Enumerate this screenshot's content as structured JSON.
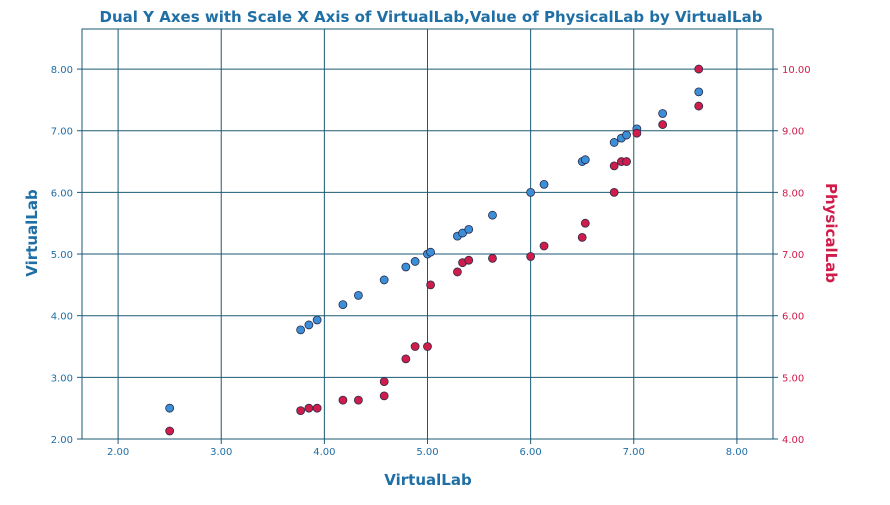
{
  "colors": {
    "left_series": "#3b8ed8",
    "right_series": "#d01c4b",
    "left_axis": "#1f6fa5",
    "right_axis": "#d01c4b",
    "grid": "#1b5a74",
    "title": "#1f6fa5"
  },
  "chart_data": {
    "type": "scatter",
    "title": "Dual Y Axes with Scale X Axis of VirtualLab,Value of PhysicalLab  by VirtualLab",
    "xlabel": "VirtualLab",
    "ylabel_left": "VirtualLab",
    "ylabel_right": "PhysicalLab",
    "xlim": [
      1.65,
      8.35
    ],
    "ylim_left": [
      2.0,
      8.65
    ],
    "ylim_right": [
      4.0,
      10.65
    ],
    "x_ticks": [
      "2.00",
      "3.00",
      "4.00",
      "5.00",
      "6.00",
      "7.00",
      "8.00"
    ],
    "y_ticks_left": [
      "2.00",
      "3.00",
      "4.00",
      "5.00",
      "6.00",
      "7.00",
      "8.00"
    ],
    "y_ticks_right": [
      "4.00",
      "5.00",
      "6.00",
      "7.00",
      "8.00",
      "9.00",
      "10.00"
    ],
    "grid": true,
    "series": [
      {
        "name": "VirtualLab",
        "axis": "left",
        "x": [
          2.5,
          3.77,
          3.85,
          3.93,
          4.18,
          4.33,
          4.58,
          4.79,
          4.88,
          5.0,
          5.03,
          5.29,
          5.34,
          5.4,
          5.63,
          6.0,
          6.13,
          6.5,
          6.53,
          6.81,
          6.88,
          6.93,
          7.03,
          7.28,
          7.63
        ],
        "y": [
          2.5,
          3.77,
          3.85,
          3.93,
          4.18,
          4.33,
          4.58,
          4.79,
          4.88,
          5.0,
          5.03,
          5.29,
          5.34,
          5.4,
          5.63,
          6.0,
          6.13,
          6.5,
          6.53,
          6.81,
          6.88,
          6.93,
          7.03,
          7.28,
          7.63
        ]
      },
      {
        "name": "PhysicalLab",
        "axis": "right",
        "x": [
          2.5,
          3.77,
          3.85,
          3.93,
          4.18,
          4.33,
          4.58,
          4.58,
          4.79,
          4.88,
          5.0,
          5.03,
          5.29,
          5.34,
          5.4,
          5.63,
          6.0,
          6.13,
          6.5,
          6.53,
          6.81,
          6.81,
          6.88,
          6.93,
          7.03,
          7.28,
          7.63,
          7.63
        ],
        "y": [
          4.13,
          4.46,
          4.5,
          4.5,
          4.63,
          4.63,
          4.7,
          4.93,
          5.3,
          5.5,
          5.5,
          6.5,
          6.71,
          6.86,
          6.9,
          6.93,
          6.96,
          7.13,
          7.27,
          7.5,
          8.0,
          8.43,
          8.5,
          8.5,
          8.96,
          9.1,
          9.4,
          10.0
        ]
      }
    ]
  }
}
